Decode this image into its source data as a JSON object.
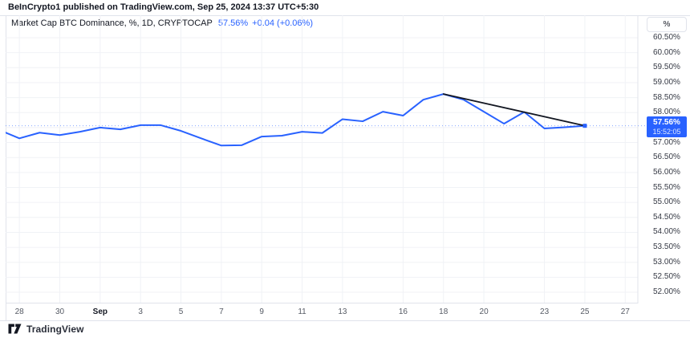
{
  "header": {
    "attribution": "BeInCrypto1 published on TradingView.com, Sep 25, 2024 13:37 UTC+5:30"
  },
  "legend": {
    "title": "Market Cap BTC Dominance, %, 1D, CRYPTOCAP",
    "value": "57.56%",
    "change": "+0.04 (+0.06%)"
  },
  "price_label": {
    "value": "57.56%",
    "time": "15:52:05"
  },
  "footer": {
    "brand": "TradingView",
    "logo_icon": "tradingview-logo"
  },
  "colors": {
    "accent": "#2962FF",
    "trend_line": "#131722",
    "grid": "#f0f2f6",
    "border": "#e0e3eb",
    "text": "#131722",
    "axis_text": "#363a45",
    "x_axis_text": "#555a64",
    "badge_bg": "#2962FF",
    "badge_text": "#FFFFFF"
  },
  "y_axis": {
    "unit": "%",
    "ticks": [
      {
        "label": "60.50%",
        "value": 60.5
      },
      {
        "label": "60.00%",
        "value": 60.0
      },
      {
        "label": "59.50%",
        "value": 59.5
      },
      {
        "label": "59.00%",
        "value": 59.0
      },
      {
        "label": "58.50%",
        "value": 58.5
      },
      {
        "label": "58.00%",
        "value": 58.0
      },
      {
        "label": "57.50%",
        "value": 57.5
      },
      {
        "label": "57.00%",
        "value": 57.0
      },
      {
        "label": "56.50%",
        "value": 56.5
      },
      {
        "label": "56.00%",
        "value": 56.0
      },
      {
        "label": "55.50%",
        "value": 55.5
      },
      {
        "label": "55.00%",
        "value": 55.0
      },
      {
        "label": "54.50%",
        "value": 54.5
      },
      {
        "label": "54.00%",
        "value": 54.0
      },
      {
        "label": "53.50%",
        "value": 53.5
      },
      {
        "label": "53.00%",
        "value": 53.0
      },
      {
        "label": "52.50%",
        "value": 52.5
      },
      {
        "label": "52.00%",
        "value": 52.0
      }
    ]
  },
  "x_axis": {
    "ticks": [
      {
        "label": "28",
        "day": 1
      },
      {
        "label": "30",
        "day": 3
      },
      {
        "label": "Sep",
        "day": 5,
        "bold": true
      },
      {
        "label": "3",
        "day": 7
      },
      {
        "label": "5",
        "day": 9
      },
      {
        "label": "7",
        "day": 11
      },
      {
        "label": "9",
        "day": 13
      },
      {
        "label": "11",
        "day": 15
      },
      {
        "label": "13",
        "day": 17
      },
      {
        "label": "16",
        "day": 20
      },
      {
        "label": "18",
        "day": 22
      },
      {
        "label": "20",
        "day": 24
      },
      {
        "label": "23",
        "day": 27
      },
      {
        "label": "25",
        "day": 29
      },
      {
        "label": "27",
        "day": 31
      }
    ]
  },
  "chart_data": {
    "type": "line",
    "title": "Market Cap BTC Dominance, %, 1D, CRYPTOCAP",
    "ylabel": "%",
    "ylim": [
      52.0,
      60.5
    ],
    "grid": true,
    "current_price": 57.56,
    "series": [
      {
        "name": "BTC Dominance %",
        "points": [
          {
            "date": "Aug 27",
            "value": 57.42
          },
          {
            "date": "Aug 28",
            "value": 57.14
          },
          {
            "date": "Aug 29",
            "value": 57.33
          },
          {
            "date": "Aug 30",
            "value": 57.25
          },
          {
            "date": "Aug 31",
            "value": 57.36
          },
          {
            "date": "Sep 1",
            "value": 57.5
          },
          {
            "date": "Sep 2",
            "value": 57.44
          },
          {
            "date": "Sep 3",
            "value": 57.58
          },
          {
            "date": "Sep 4",
            "value": 57.58
          },
          {
            "date": "Sep 5",
            "value": 57.39
          },
          {
            "date": "Sep 6",
            "value": 57.14
          },
          {
            "date": "Sep 7",
            "value": 56.9
          },
          {
            "date": "Sep 8",
            "value": 56.91
          },
          {
            "date": "Sep 9",
            "value": 57.2
          },
          {
            "date": "Sep 10",
            "value": 57.23
          },
          {
            "date": "Sep 11",
            "value": 57.36
          },
          {
            "date": "Sep 12",
            "value": 57.32
          },
          {
            "date": "Sep 13",
            "value": 57.78
          },
          {
            "date": "Sep 14",
            "value": 57.71
          },
          {
            "date": "Sep 15",
            "value": 58.03
          },
          {
            "date": "Sep 16",
            "value": 57.9
          },
          {
            "date": "Sep 17",
            "value": 58.43
          },
          {
            "date": "Sep 18",
            "value": 58.62
          },
          {
            "date": "Sep 19",
            "value": 58.43
          },
          {
            "date": "Sep 20",
            "value": 58.03
          },
          {
            "date": "Sep 21",
            "value": 57.63
          },
          {
            "date": "Sep 22",
            "value": 58.02
          },
          {
            "date": "Sep 23",
            "value": 57.47
          },
          {
            "date": "Sep 24",
            "value": 57.51
          },
          {
            "date": "Sep 25",
            "value": 57.56
          }
        ]
      }
    ],
    "trend_line": {
      "from": {
        "date": "Sep 18",
        "value": 58.62
      },
      "to": {
        "date": "Sep 25",
        "value": 57.56
      }
    }
  }
}
